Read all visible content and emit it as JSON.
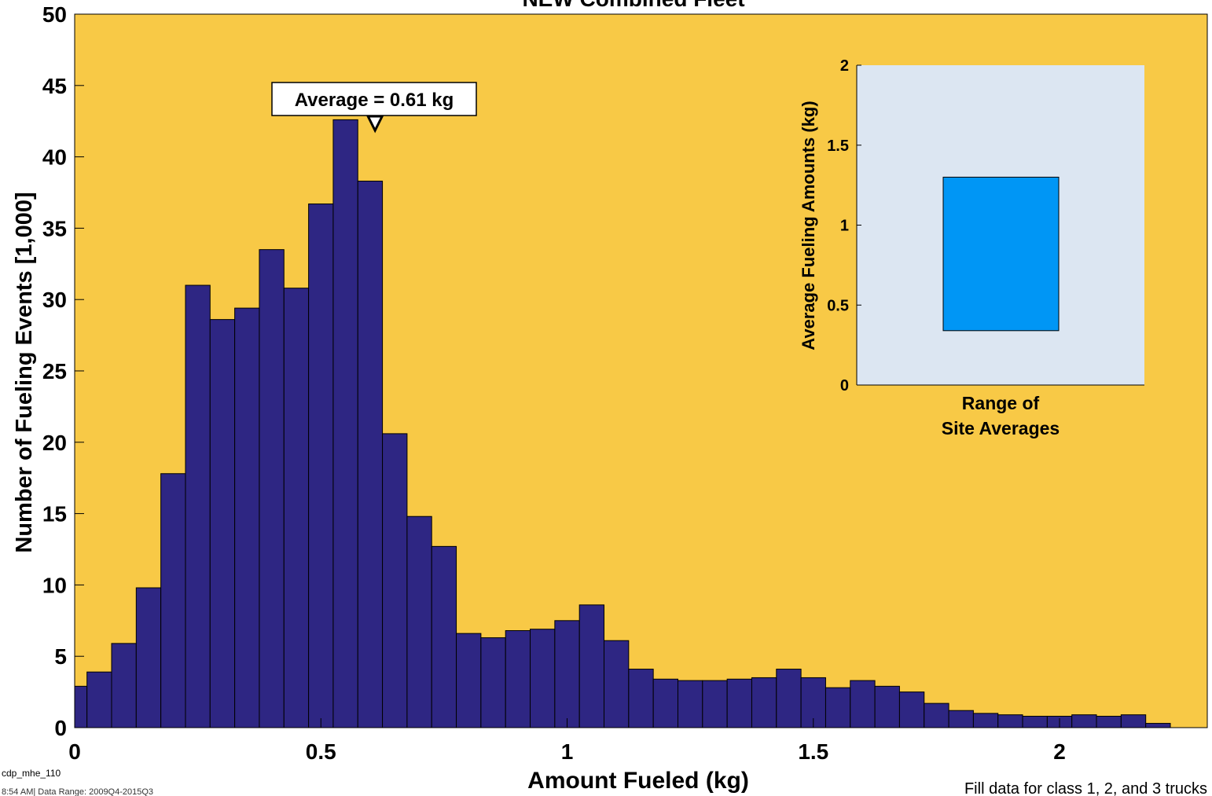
{
  "title": "NEW Combined Fleet",
  "footer": {
    "id": "cdp_mhe_110",
    "created": "8:54 AM| Data Range: 2009Q4-2015Q3",
    "note": "Fill data for class 1, 2, and 3 trucks"
  },
  "colors": {
    "plot_bg": "#F8C946",
    "bar_fill": "#2E2683",
    "inset_bg": "#DCE6F2",
    "inset_bar": "#0096F5"
  },
  "chart_data": [
    {
      "type": "bar",
      "title": "NEW Combined Fleet",
      "xlabel": "Amount Fueled (kg)",
      "ylabel": "Number of Fueling Events [1,000]",
      "xlim": [
        0,
        2.3
      ],
      "ylim": [
        0,
        50
      ],
      "xticks": [
        "0",
        "0.5",
        "1",
        "1.5",
        "2"
      ],
      "yticks": [
        "0",
        "5",
        "10",
        "15",
        "20",
        "25",
        "30",
        "35",
        "40",
        "45",
        "50"
      ],
      "bin_width": 0.05,
      "bin_start": -0.025,
      "values": [
        2.9,
        3.9,
        5.9,
        9.8,
        17.8,
        31.0,
        28.6,
        29.4,
        33.5,
        30.8,
        36.7,
        42.6,
        38.3,
        20.6,
        14.8,
        12.7,
        6.6,
        6.3,
        6.8,
        6.9,
        7.5,
        8.6,
        6.1,
        4.1,
        3.4,
        3.3,
        3.3,
        3.4,
        3.5,
        4.1,
        3.5,
        2.8,
        3.3,
        2.9,
        2.5,
        1.7,
        1.2,
        1.0,
        0.9,
        0.8,
        0.8,
        0.9,
        0.8,
        0.9,
        0.3
      ],
      "annotation": {
        "text": "Average = 0.61 kg",
        "x": 0.61
      }
    },
    {
      "type": "bar",
      "xlabel": "Range of Site Averages",
      "xlabel_lines": [
        "Range of",
        "Site Averages"
      ],
      "ylabel": "Average Fueling Amounts (kg)",
      "ylim": [
        0,
        2
      ],
      "yticks": [
        "0",
        "0.5",
        "1",
        "1.5",
        "2"
      ],
      "range": [
        0.34,
        1.3
      ]
    }
  ]
}
